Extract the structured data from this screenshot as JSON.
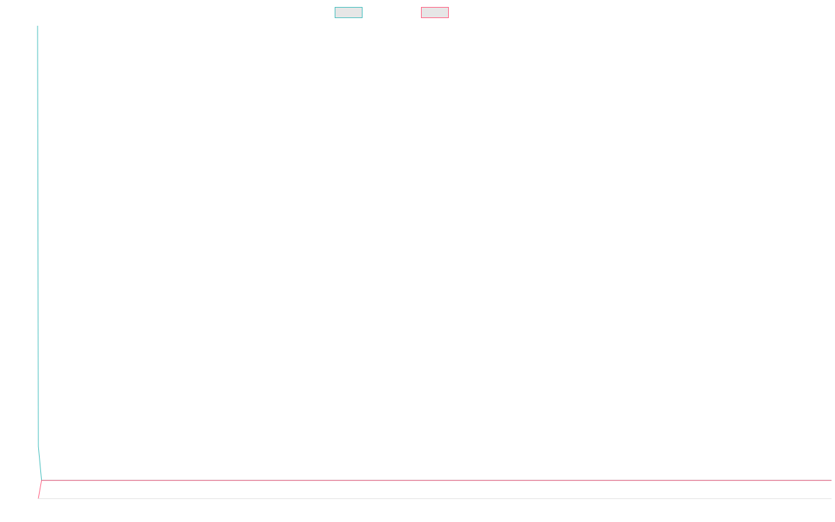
{
  "chart_data": {
    "type": "line",
    "x": [
      0,
      0.1,
      0.5,
      100
    ],
    "xlim": [
      0,
      100
    ],
    "ylim": [
      0,
      100
    ],
    "series": [
      {
        "color": "#4bc0c0",
        "values": [
          100,
          11,
          3.8,
          3.8
        ]
      },
      {
        "color": "#ff6384",
        "values": [
          null,
          0,
          3.8,
          3.8
        ]
      }
    ]
  }
}
